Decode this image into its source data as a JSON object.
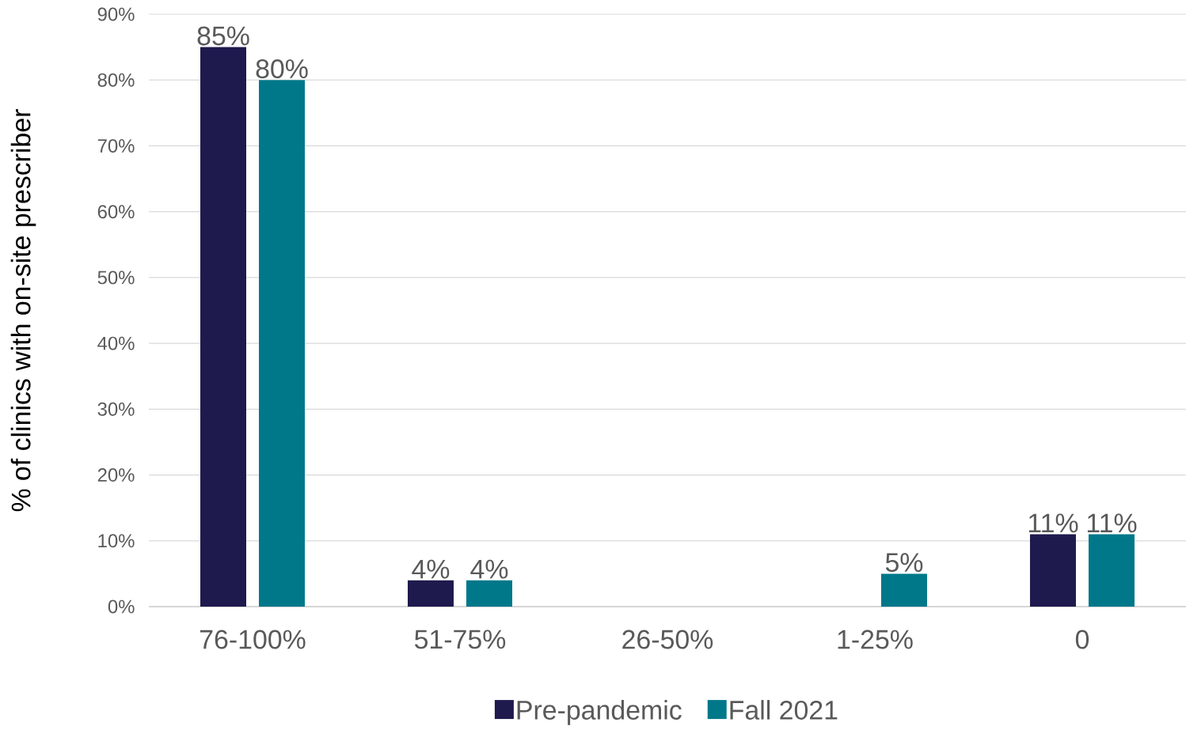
{
  "chart_data": {
    "type": "bar",
    "ylabel": "% of clinics with on-site prescriber",
    "categories": [
      "76-100%",
      "51-75%",
      "26-50%",
      "1-25%",
      "0"
    ],
    "series": [
      {
        "name": "Pre-pandemic",
        "color": "#1e1a4d",
        "values": [
          85,
          4,
          null,
          null,
          11
        ],
        "value_labels": [
          "85%",
          "4%",
          null,
          null,
          "11%"
        ]
      },
      {
        "name": "Fall 2021",
        "color": "#00788a",
        "values": [
          80,
          4,
          null,
          5,
          11
        ],
        "value_labels": [
          "80%",
          "4%",
          null,
          "5%",
          "11%"
        ]
      }
    ],
    "ylim": [
      0,
      90
    ],
    "yticks": [
      {
        "value": 0,
        "label": "0%"
      },
      {
        "value": 10,
        "label": "10%"
      },
      {
        "value": 20,
        "label": "20%"
      },
      {
        "value": 30,
        "label": "30%"
      },
      {
        "value": 40,
        "label": "40%"
      },
      {
        "value": 50,
        "label": "50%"
      },
      {
        "value": 60,
        "label": "60%"
      },
      {
        "value": 70,
        "label": "70%"
      },
      {
        "value": 80,
        "label": "80%"
      },
      {
        "value": 90,
        "label": "90%"
      }
    ],
    "grid": "y",
    "legend": "bottom"
  }
}
